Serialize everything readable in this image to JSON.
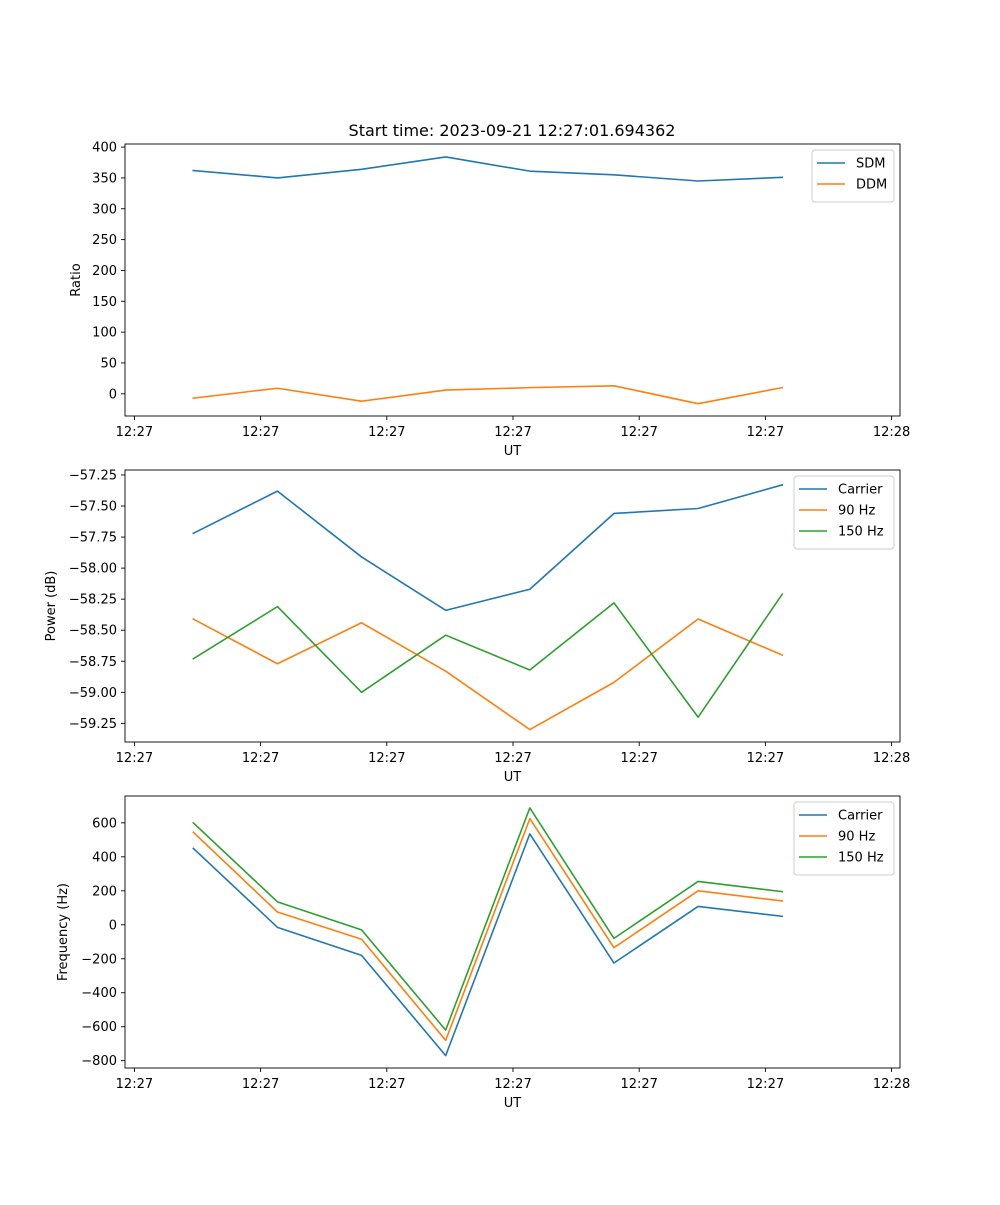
{
  "title": "Start time: 2023-09-21 12:27:01.694362",
  "colors": {
    "blue": "#1f77b4",
    "orange": "#ff7f0e",
    "green": "#2ca02c"
  },
  "chart_data": [
    {
      "type": "line",
      "title": "Start time: 2023-09-21 12:27:01.694362",
      "xlabel": "UT",
      "ylabel": "Ratio",
      "x": [
        1,
        2,
        3,
        4,
        5,
        6,
        7,
        8
      ],
      "xlim": [
        0.1882,
        9.4
      ],
      "x_ticks": [
        0.3,
        1.8,
        3.3,
        4.8,
        6.3,
        7.8,
        9.3
      ],
      "x_tick_labels": [
        "12:27",
        "12:27",
        "12:27",
        "12:27",
        "12:27",
        "12:27",
        "12:28"
      ],
      "ylim": [
        -36,
        405
      ],
      "y_ticks": [
        0,
        50,
        100,
        150,
        200,
        250,
        300,
        350,
        400
      ],
      "y_tick_labels": [
        "0",
        "50",
        "100",
        "150",
        "200",
        "250",
        "300",
        "350",
        "400"
      ],
      "legend_position": "top-right",
      "series": [
        {
          "name": "SDM",
          "color": "#1f77b4",
          "values": [
            362,
            350,
            364,
            384,
            361,
            355,
            345,
            351
          ]
        },
        {
          "name": "DDM",
          "color": "#ff7f0e",
          "values": [
            -7,
            9,
            -12,
            6,
            10,
            13,
            -16,
            10
          ]
        }
      ]
    },
    {
      "type": "line",
      "title": "",
      "xlabel": "UT",
      "ylabel": "Power (dB)",
      "x": [
        1,
        2,
        3,
        4,
        5,
        6,
        7,
        8
      ],
      "xlim": [
        0.1882,
        9.4
      ],
      "x_ticks": [
        0.3,
        1.8,
        3.3,
        4.8,
        6.3,
        7.8,
        9.3
      ],
      "x_tick_labels": [
        "12:27",
        "12:27",
        "12:27",
        "12:27",
        "12:27",
        "12:27",
        "12:28"
      ],
      "ylim": [
        -59.4,
        -57.21
      ],
      "y_ticks": [
        -59.25,
        -59.0,
        -58.75,
        -58.5,
        -58.25,
        -58.0,
        -57.75,
        -57.5,
        -57.25
      ],
      "y_tick_labels": [
        "−59.25",
        "−59.00",
        "−58.75",
        "−58.50",
        "−58.25",
        "−58.00",
        "−57.75",
        "−57.50",
        "−57.25"
      ],
      "legend_position": "top-right",
      "series": [
        {
          "name": "Carrier",
          "color": "#1f77b4",
          "values": [
            -57.72,
            -57.38,
            -57.91,
            -58.34,
            -58.17,
            -57.56,
            -57.52,
            -57.33
          ]
        },
        {
          "name": "90 Hz",
          "color": "#ff7f0e",
          "values": [
            -58.41,
            -58.77,
            -58.44,
            -58.83,
            -59.3,
            -58.92,
            -58.41,
            -58.7
          ]
        },
        {
          "name": "150 Hz",
          "color": "#2ca02c",
          "values": [
            -58.73,
            -58.31,
            -59.0,
            -58.54,
            -58.82,
            -58.28,
            -59.2,
            -58.21
          ]
        }
      ]
    },
    {
      "type": "line",
      "title": "",
      "xlabel": "UT",
      "ylabel": "Frequency (Hz)",
      "x": [
        1,
        2,
        3,
        4,
        5,
        6,
        7,
        8
      ],
      "xlim": [
        0.1882,
        9.4
      ],
      "x_ticks": [
        0.3,
        1.8,
        3.3,
        4.8,
        6.3,
        7.8,
        9.3
      ],
      "x_tick_labels": [
        "12:27",
        "12:27",
        "12:27",
        "12:27",
        "12:27",
        "12:27",
        "12:28"
      ],
      "ylim": [
        -843,
        758
      ],
      "y_ticks": [
        -800,
        -600,
        -400,
        -200,
        0,
        200,
        400,
        600
      ],
      "y_tick_labels": [
        "−800",
        "−600",
        "−400",
        "−200",
        "0",
        "200",
        "400",
        "600"
      ],
      "legend_position": "top-right",
      "series": [
        {
          "name": "Carrier",
          "color": "#1f77b4",
          "values": [
            450,
            -15,
            -180,
            -770,
            535,
            -225,
            108,
            50
          ]
        },
        {
          "name": "90 Hz",
          "color": "#ff7f0e",
          "values": [
            545,
            75,
            -85,
            -680,
            625,
            -135,
            200,
            140
          ]
        },
        {
          "name": "150 Hz",
          "color": "#2ca02c",
          "values": [
            600,
            135,
            -30,
            -620,
            688,
            -80,
            255,
            195
          ]
        }
      ]
    }
  ]
}
